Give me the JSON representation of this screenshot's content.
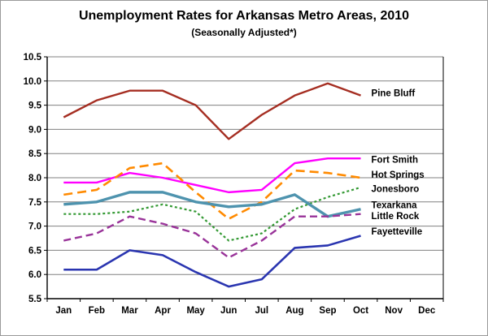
{
  "title": "Unemployment Rates for Arkansas Metro Areas, 2010",
  "subtitle": "(Seasonally Adjusted*)",
  "chart_data": {
    "type": "line",
    "categories": [
      "Jan",
      "Feb",
      "Mar",
      "Apr",
      "May",
      "Jun",
      "Jul",
      "Aug",
      "Sep",
      "Oct",
      "Nov",
      "Dec"
    ],
    "series": [
      {
        "name": "Pine Bluff",
        "color": "#A52E22",
        "dasharray": "",
        "stroke_width": 2.4,
        "values": [
          9.25,
          9.6,
          9.8,
          9.8,
          9.5,
          8.8,
          9.3,
          9.7,
          9.95,
          9.7
        ],
        "label_value": 9.75
      },
      {
        "name": "Fort Smith",
        "color": "#FF00FF",
        "dasharray": "",
        "stroke_width": 2.4,
        "values": [
          7.9,
          7.9,
          8.1,
          8.0,
          7.85,
          7.7,
          7.75,
          8.3,
          8.4,
          8.4
        ],
        "label_value": 8.38
      },
      {
        "name": "Hot Springs",
        "color": "#FF8A00",
        "dasharray": "11 6",
        "stroke_width": 2.6,
        "values": [
          7.65,
          7.75,
          8.2,
          8.3,
          7.7,
          7.15,
          7.5,
          8.15,
          8.1,
          8.0
        ],
        "label_value": 8.07
      },
      {
        "name": "Jonesboro",
        "color": "#339933",
        "dasharray": "3 3",
        "stroke_width": 2.2,
        "values": [
          7.25,
          7.25,
          7.3,
          7.45,
          7.3,
          6.7,
          6.85,
          7.35,
          7.6,
          7.8
        ],
        "label_value": 7.77
      },
      {
        "name": "Texarkana",
        "color": "#4E93AE",
        "dasharray": "",
        "stroke_width": 3.4,
        "values": [
          7.45,
          7.5,
          7.7,
          7.7,
          7.5,
          7.4,
          7.45,
          7.65,
          7.2,
          7.35
        ],
        "label_value": 7.44
      },
      {
        "name": "Little Rock",
        "color": "#993399",
        "dasharray": "9 5",
        "stroke_width": 2.4,
        "values": [
          6.7,
          6.85,
          7.2,
          7.05,
          6.85,
          6.35,
          6.7,
          7.2,
          7.2,
          7.25
        ],
        "label_value": 7.21
      },
      {
        "name": "Fayetteville",
        "color": "#2A35B0",
        "dasharray": "",
        "stroke_width": 2.6,
        "values": [
          6.1,
          6.1,
          6.5,
          6.4,
          6.05,
          5.75,
          5.9,
          6.55,
          6.6,
          6.8
        ],
        "label_value": 6.89
      }
    ],
    "xlabel": "",
    "ylabel": "",
    "ylim": [
      5.5,
      10.5
    ],
    "ytick_step": 0.5,
    "y_ticks": [
      "10.5",
      "10.0",
      "9.5",
      "9.0",
      "8.5",
      "8.0",
      "7.5",
      "7.0",
      "6.5",
      "6.0",
      "5.5"
    ],
    "grid": "horizontal",
    "grid_color": "#808080",
    "axis_color": "#000000",
    "legend_position": "inline-right"
  }
}
